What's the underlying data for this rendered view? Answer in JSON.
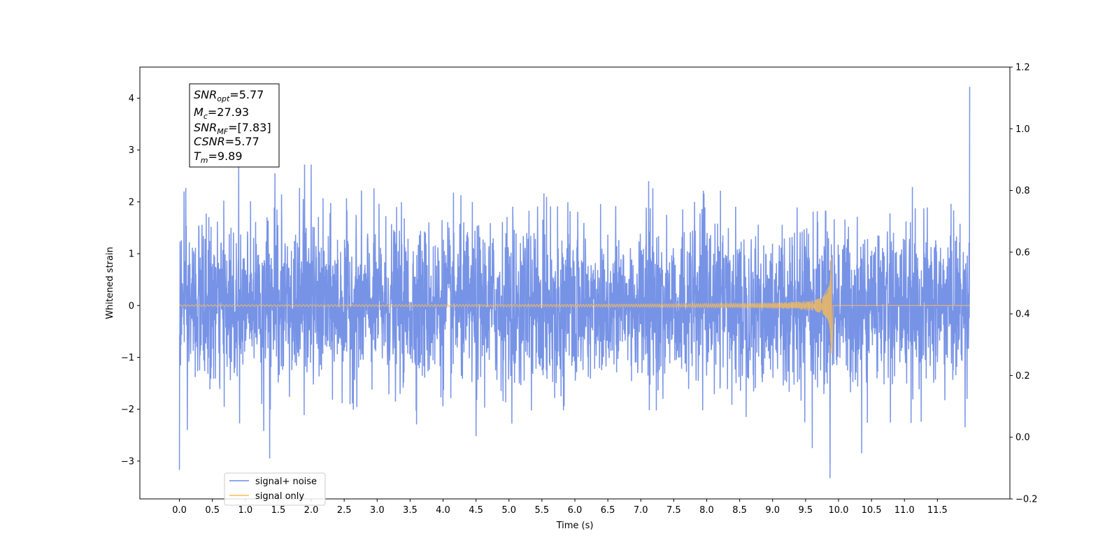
{
  "chart_data": {
    "type": "line",
    "title": "",
    "xlabel": "Time (s)",
    "ylabel": "Whitened strain",
    "xlim": [
      -0.6,
      12.6
    ],
    "ylim": [
      -3.73,
      4.6
    ],
    "y2lim": [
      -0.2,
      1.2
    ],
    "x_ticks": [
      "0.0",
      "0.5",
      "1.0",
      "1.5",
      "2.0",
      "2.5",
      "3.0",
      "3.5",
      "4.0",
      "4.5",
      "5.0",
      "5.5",
      "6.0",
      "6.5",
      "7.0",
      "7.5",
      "8.0",
      "8.5",
      "9.0",
      "9.5",
      "10.0",
      "10.5",
      "11.0",
      "11.5"
    ],
    "y_ticks": [
      "4",
      "3",
      "2",
      "1",
      "0",
      "−1",
      "−2",
      "−3"
    ],
    "y2_ticks": [
      "1.2",
      "1.0",
      "0.8",
      "0.6",
      "0.4",
      "0.2",
      "0.0",
      "−0.2"
    ],
    "grid": false,
    "legend_position": "lower-left",
    "series": [
      {
        "name": "signal+ noise",
        "color": "#6b8ae4",
        "x_range": [
          0.0,
          11.99
        ],
        "typical_envelope": [
          -1.6,
          1.6
        ],
        "peaks": [
          {
            "x": 0.0,
            "y": -3.17
          },
          {
            "x": 0.07,
            "y": 2.2
          },
          {
            "x": 0.12,
            "y": -2.4
          },
          {
            "x": 0.9,
            "y": 2.7
          },
          {
            "x": 1.28,
            "y": -2.42
          },
          {
            "x": 1.37,
            "y": -2.95
          },
          {
            "x": 1.45,
            "y": 2.55
          },
          {
            "x": 1.9,
            "y": 2.72
          },
          {
            "x": 2.0,
            "y": 2.72
          },
          {
            "x": 4.5,
            "y": -2.52
          },
          {
            "x": 7.12,
            "y": 2.4
          },
          {
            "x": 9.6,
            "y": -2.75
          },
          {
            "x": 9.87,
            "y": -3.33
          },
          {
            "x": 10.35,
            "y": -2.85
          },
          {
            "x": 11.92,
            "y": -2.35
          },
          {
            "x": 11.99,
            "y": 4.22
          }
        ]
      },
      {
        "name": "signal only",
        "color": "#ffbe4d",
        "x_range": [
          0.0,
          11.99
        ],
        "merger_time": 9.89,
        "peak_amplitude": 0.93,
        "start_amplitude": 0.015
      }
    ],
    "annotation": [
      {
        "main": "SNR",
        "sub": "opt",
        "value": "=5.77"
      },
      {
        "main": "M",
        "sub": "c",
        "value": "=27.93"
      },
      {
        "main": "SNR",
        "sub": "MF",
        "value": "=[7.83]"
      },
      {
        "main": "CSNR",
        "sub": "",
        "value": "=5.77"
      },
      {
        "main": "T",
        "sub": "m",
        "value": "=9.89"
      }
    ]
  }
}
